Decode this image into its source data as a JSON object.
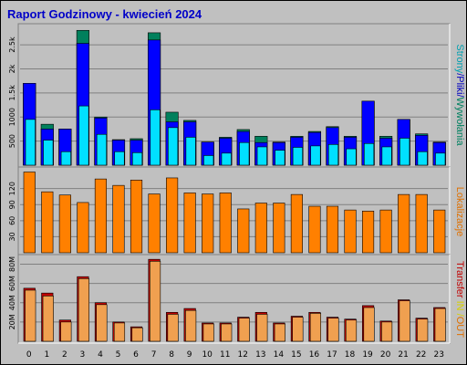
{
  "title": "Raport Godzinowy -  kwiecień 2024",
  "colors": {
    "background": "#c0c0c0",
    "hits": "#00805c",
    "files": "#0000ff",
    "pages": "#00e0ff",
    "visits": "#ff8000",
    "kb_out": "#c00000",
    "kb_in": "#f0a050",
    "label_pages": "#00a0b0",
    "label_files": "#0000c0",
    "label_hits": "#008060",
    "label_visits": "#e07000",
    "label_transfer": "#c00000",
    "label_in": "#d8d000",
    "label_out": "#e07000"
  },
  "side_labels": {
    "panel1": [
      {
        "text": "Strony",
        "color": "label_pages"
      },
      {
        "text": "/",
        "color": "label_files"
      },
      {
        "text": "Pliki",
        "color": "label_files"
      },
      {
        "text": "/",
        "color": "label_files"
      },
      {
        "text": "Wywołania",
        "color": "label_hits"
      }
    ],
    "panel2": [
      {
        "text": "Lokalizacje",
        "color": "label_visits"
      }
    ],
    "panel3": [
      {
        "text": "Transfer",
        "color": "label_transfer"
      },
      {
        "text": " ",
        "color": "label_transfer"
      },
      {
        "text": "IN",
        "color": "label_in"
      },
      {
        "text": " /",
        "color": "label_in"
      },
      {
        "text": "OUT",
        "color": "label_out"
      }
    ]
  },
  "chart_data": [
    {
      "type": "bar",
      "panel": "hits_files_pages",
      "categories": [
        "0",
        "1",
        "2",
        "3",
        "4",
        "5",
        "6",
        "7",
        "8",
        "9",
        "10",
        "11",
        "12",
        "13",
        "14",
        "15",
        "16",
        "17",
        "18",
        "19",
        "20",
        "21",
        "22",
        "23"
      ],
      "series": [
        {
          "name": "Wywołania",
          "values": [
            1700,
            850,
            750,
            2800,
            1000,
            530,
            550,
            2750,
            1100,
            930,
            480,
            580,
            740,
            600,
            480,
            600,
            700,
            800,
            600,
            1330,
            600,
            950,
            650,
            480
          ]
        },
        {
          "name": "Pliki",
          "values": [
            1700,
            750,
            750,
            2530,
            980,
            520,
            520,
            2600,
            900,
            900,
            480,
            560,
            700,
            470,
            470,
            580,
            680,
            780,
            580,
            1330,
            560,
            950,
            620,
            470
          ]
        },
        {
          "name": "Strony",
          "values": [
            950,
            520,
            280,
            1230,
            640,
            280,
            260,
            1150,
            780,
            580,
            200,
            250,
            470,
            380,
            310,
            370,
            400,
            430,
            340,
            450,
            380,
            560,
            280,
            250
          ]
        }
      ],
      "y_ticks": [
        "500",
        "1000",
        "1.5k",
        "2k",
        "2.5k"
      ],
      "ylim": [
        0,
        2900
      ]
    },
    {
      "type": "bar",
      "panel": "visits",
      "categories": [
        "0",
        "1",
        "2",
        "3",
        "4",
        "5",
        "6",
        "7",
        "8",
        "9",
        "10",
        "11",
        "12",
        "13",
        "14",
        "15",
        "16",
        "17",
        "18",
        "19",
        "20",
        "21",
        "22",
        "23"
      ],
      "series": [
        {
          "name": "Lokalizacje",
          "values": [
            151,
            114,
            108,
            94,
            138,
            126,
            136,
            110,
            140,
            112,
            110,
            112,
            82,
            93,
            93,
            109,
            87,
            87,
            80,
            78,
            80,
            109,
            109,
            80
          ]
        }
      ],
      "y_ticks": [
        "30",
        "60",
        "90",
        "120"
      ],
      "ylim": [
        0,
        157
      ]
    },
    {
      "type": "bar",
      "panel": "transfer",
      "categories": [
        "0",
        "1",
        "2",
        "3",
        "4",
        "5",
        "6",
        "7",
        "8",
        "9",
        "10",
        "11",
        "12",
        "13",
        "14",
        "15",
        "16",
        "17",
        "18",
        "19",
        "20",
        "21",
        "22",
        "23"
      ],
      "series": [
        {
          "name": "OUT",
          "values": [
            55,
            50,
            22,
            67,
            40,
            20,
            15,
            85,
            30,
            34,
            19,
            19,
            25,
            30,
            19,
            26,
            30,
            25,
            23,
            37,
            21,
            43,
            24,
            35
          ]
        },
        {
          "name": "IN",
          "values": [
            53,
            47,
            20,
            65,
            38,
            19,
            14,
            83,
            28,
            32,
            18,
            18,
            24,
            28,
            18,
            25,
            29,
            24,
            22,
            35,
            20,
            42,
            23,
            34
          ]
        }
      ],
      "y_ticks": [
        "20M",
        "40M",
        "60M",
        "80M"
      ],
      "ylim": [
        0,
        88
      ]
    }
  ]
}
